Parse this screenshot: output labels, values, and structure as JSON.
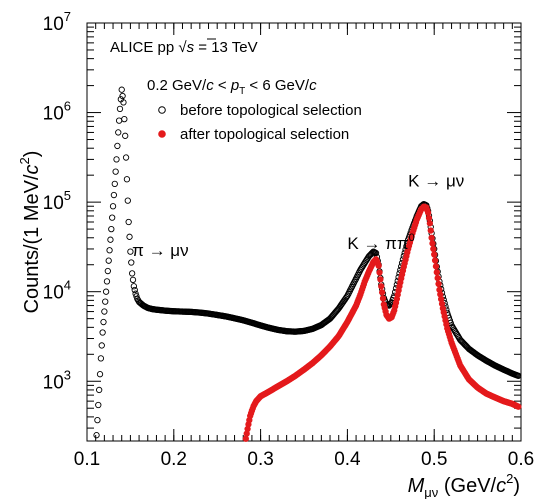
{
  "chart_data": {
    "type": "scatter",
    "title": "",
    "xlabel_main": "M",
    "xlabel_sub": "μν",
    "xlabel_unit_pre": " (GeV/",
    "xlabel_unit_c": "c",
    "xlabel_unit_sup": "2",
    "xlabel_unit_post": ")",
    "ylabel_pre": "Counts/(1 MeV/",
    "ylabel_c": "c",
    "ylabel_sup": "2",
    "ylabel_post": ")",
    "xlim": [
      0.1,
      0.6
    ],
    "ylim_log10": [
      2.333,
      7
    ],
    "y_scale": "log",
    "grid": false,
    "x_ticks": [
      {
        "value": 0.1,
        "label": "0.1"
      },
      {
        "value": 0.2,
        "label": "0.2"
      },
      {
        "value": 0.3,
        "label": "0.3"
      },
      {
        "value": 0.4,
        "label": "0.4"
      },
      {
        "value": 0.5,
        "label": "0.5"
      },
      {
        "value": 0.6,
        "label": "0.6"
      }
    ],
    "y_ticks": [
      {
        "exp": 3,
        "base": "10",
        "sup": "3"
      },
      {
        "exp": 4,
        "base": "10",
        "sup": "4"
      },
      {
        "exp": 5,
        "base": "10",
        "sup": "5"
      },
      {
        "exp": 6,
        "base": "10",
        "sup": "6"
      },
      {
        "exp": 7,
        "base": "10",
        "sup": "7"
      }
    ],
    "header": {
      "experiment": "ALICE pp ",
      "sqrt_s": "s",
      "energy": " = 13 TeV",
      "pt_range_a": "0.2 GeV/",
      "pt_range_c1": "c",
      "pt_range_b": " < ",
      "pt_range_p": "p",
      "pt_range_T": "T",
      "pt_range_d": " < 6 GeV/",
      "pt_range_c2": "c"
    },
    "legend_position": "top-left",
    "annotations": [
      {
        "text": "π → μν",
        "x": 0.152,
        "y": 25000
      },
      {
        "text": "K → ππ",
        "sup": "0",
        "x": 0.4,
        "y": 30000
      },
      {
        "text": "K → μν",
        "x": 0.47,
        "y": 150000
      }
    ],
    "series": [
      {
        "name": "before topological selection",
        "marker": "open-circle",
        "color": "#000000",
        "x": [
          0.111,
          0.114,
          0.116,
          0.118,
          0.12,
          0.122,
          0.124,
          0.126,
          0.128,
          0.13,
          0.132,
          0.134,
          0.136,
          0.138,
          0.14,
          0.142,
          0.144,
          0.146,
          0.148,
          0.15,
          0.152,
          0.154,
          0.156,
          0.158,
          0.16,
          0.165,
          0.17,
          0.175,
          0.18,
          0.19,
          0.2,
          0.21,
          0.22,
          0.23,
          0.24,
          0.25,
          0.26,
          0.27,
          0.28,
          0.29,
          0.3,
          0.31,
          0.32,
          0.33,
          0.34,
          0.35,
          0.36,
          0.37,
          0.38,
          0.39,
          0.4,
          0.41,
          0.415,
          0.42,
          0.425,
          0.43,
          0.433,
          0.436,
          0.439,
          0.442,
          0.445,
          0.448,
          0.451,
          0.454,
          0.457,
          0.46,
          0.465,
          0.47,
          0.475,
          0.48,
          0.485,
          0.488,
          0.491,
          0.493,
          0.495,
          0.497,
          0.5,
          0.503,
          0.506,
          0.51,
          0.515,
          0.52,
          0.53,
          0.54,
          0.55,
          0.56,
          0.57,
          0.58,
          0.59,
          0.597
        ],
        "y": [
          250,
          800,
          1800,
          3500,
          6000,
          10000,
          17000,
          29000,
          50000,
          90000,
          160000,
          300000,
          600000,
          1100000,
          1800000,
          1300000,
          550000,
          180000,
          60000,
          28000,
          16000,
          11500,
          9500,
          8300,
          7700,
          7000,
          6600,
          6400,
          6300,
          6150,
          6050,
          6000,
          5950,
          5850,
          5700,
          5500,
          5300,
          5050,
          4800,
          4500,
          4200,
          3950,
          3750,
          3620,
          3580,
          3650,
          3850,
          4250,
          5000,
          6500,
          9000,
          14000,
          17500,
          21000,
          25000,
          28000,
          27000,
          20000,
          12000,
          8500,
          7200,
          7000,
          7600,
          9000,
          12000,
          16000,
          25000,
          38000,
          52000,
          70000,
          90000,
          95000,
          92000,
          80000,
          62000,
          45000,
          30000,
          19000,
          13000,
          8800,
          5800,
          4200,
          2900,
          2300,
          1950,
          1700,
          1500,
          1350,
          1220,
          1150
        ]
      },
      {
        "name": "after topological selection",
        "marker": "filled-circle",
        "color": "#e41a1c",
        "x": [
          0.282,
          0.284,
          0.286,
          0.288,
          0.29,
          0.292,
          0.295,
          0.3,
          0.31,
          0.32,
          0.33,
          0.34,
          0.35,
          0.36,
          0.37,
          0.38,
          0.39,
          0.4,
          0.41,
          0.415,
          0.42,
          0.425,
          0.43,
          0.433,
          0.436,
          0.439,
          0.442,
          0.445,
          0.448,
          0.451,
          0.454,
          0.457,
          0.46,
          0.465,
          0.47,
          0.475,
          0.48,
          0.485,
          0.488,
          0.491,
          0.493,
          0.495,
          0.497,
          0.5,
          0.503,
          0.506,
          0.51,
          0.515,
          0.52,
          0.53,
          0.54,
          0.55,
          0.56,
          0.57,
          0.58,
          0.59,
          0.597
        ],
        "y": [
          200,
          260,
          330,
          410,
          470,
          530,
          600,
          680,
          770,
          880,
          1000,
          1150,
          1350,
          1600,
          1950,
          2450,
          3200,
          4600,
          7000,
          9300,
          13000,
          17000,
          21500,
          23000,
          19500,
          11500,
          7200,
          5500,
          5000,
          5200,
          6200,
          8300,
          11500,
          19000,
          30000,
          45000,
          64000,
          83000,
          89000,
          87000,
          76000,
          58000,
          40000,
          26000,
          16500,
          10500,
          6500,
          3900,
          2700,
          1500,
          1050,
          850,
          730,
          660,
          600,
          560,
          520
        ]
      }
    ]
  }
}
